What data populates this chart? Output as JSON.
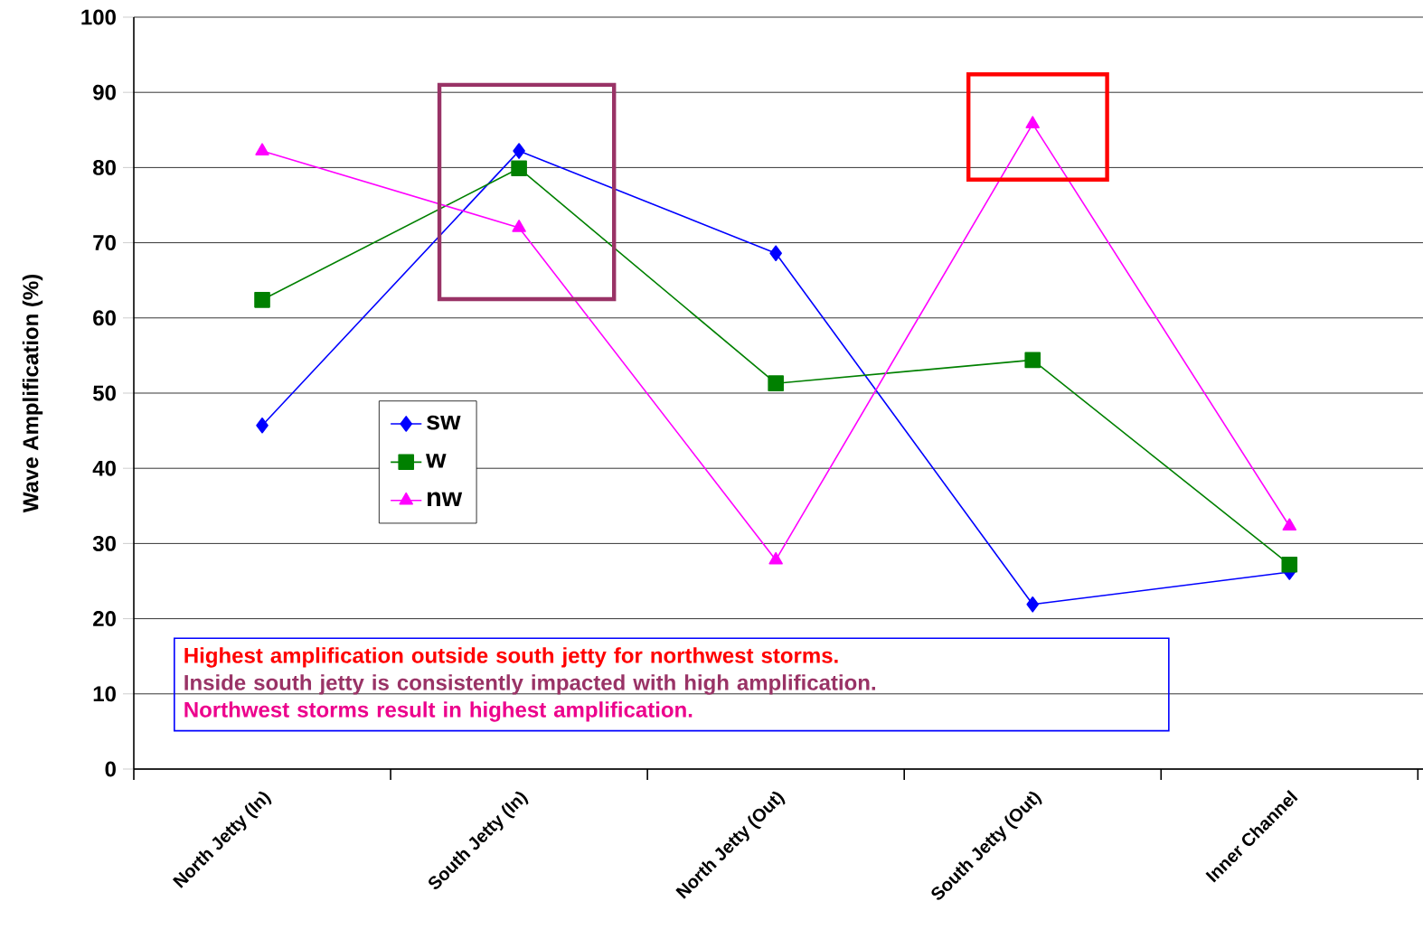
{
  "chart_data": {
    "type": "line",
    "ylabel": "Wave Amplification (%)",
    "categories": [
      "North Jetty (In)",
      "South Jetty (In)",
      "North Jetty (Out)",
      "South Jetty (Out)",
      "Inner Channel"
    ],
    "series": [
      {
        "name": "sw",
        "color": "#0000ff",
        "marker": "diamond",
        "values": [
          45.7,
          82.2,
          68.6,
          21.9,
          26.2
        ]
      },
      {
        "name": "w",
        "color": "#008000",
        "marker": "square",
        "values": [
          62.4,
          79.9,
          51.3,
          54.4,
          27.2
        ]
      },
      {
        "name": "nw",
        "color": "#ff00ff",
        "marker": "triangle",
        "values": [
          82.2,
          72.0,
          27.8,
          85.8,
          32.3
        ]
      }
    ],
    "ylim": [
      0,
      100
    ],
    "yticks": [
      0,
      10,
      20,
      30,
      40,
      50,
      60,
      70,
      80,
      90,
      100
    ],
    "grid": "y",
    "legend": "left",
    "line_style": "solid",
    "annotations": [
      "Highest amplification outside south jetty for northwest storms.",
      "Inside south jetty is consistently impacted with high amplification.",
      "Northwest storms result in highest amplification."
    ]
  }
}
